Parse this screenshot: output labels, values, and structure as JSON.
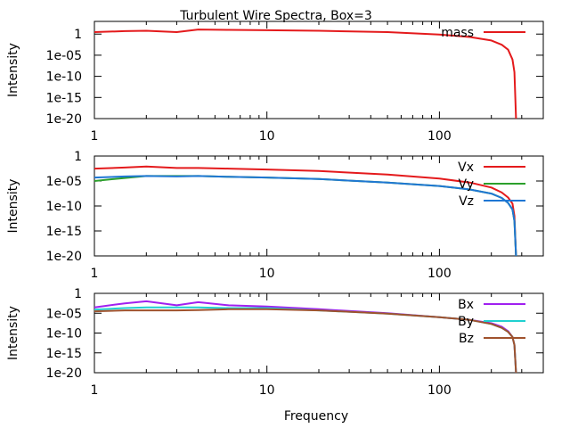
{
  "title": "Turbulent Wire Spectra, Box=3",
  "chart_data": [
    {
      "type": "line",
      "xscale": "log",
      "yscale": "log",
      "xlim": [
        1,
        400
      ],
      "ylim": [
        1e-20,
        1000
      ],
      "xticks": [
        "1",
        "10",
        "100"
      ],
      "yticks": [
        "1e-20",
        "1e-15",
        "1e-10",
        "1e-05",
        "1"
      ],
      "ylabel": "Intensity",
      "xlabel": "",
      "legend_position": "top-right",
      "series": [
        {
          "name": "mass",
          "color": "#e41a1c",
          "x": [
            1,
            1.5,
            2,
            3,
            4,
            6,
            10,
            20,
            50,
            100,
            150,
            200,
            230,
            250,
            265,
            272,
            278
          ],
          "y": [
            3,
            5,
            6,
            3,
            12,
            10,
            8,
            6,
            3,
            0.8,
            0.2,
            0.03,
            0.003,
            0.0002,
            1e-06,
            1e-09,
            1e-20
          ]
        }
      ]
    },
    {
      "type": "line",
      "xscale": "log",
      "yscale": "log",
      "xlim": [
        1,
        400
      ],
      "ylim": [
        1e-20,
        1
      ],
      "xticks": [
        "1",
        "10",
        "100"
      ],
      "yticks": [
        "1e-20",
        "1e-15",
        "1e-10",
        "1e-05",
        "1"
      ],
      "ylabel": "Intensity",
      "xlabel": "",
      "legend_position": "top-right",
      "series": [
        {
          "name": "Vx",
          "color": "#e41a1c",
          "x": [
            1,
            1.5,
            2,
            3,
            4,
            6,
            10,
            20,
            50,
            100,
            150,
            200,
            230,
            250,
            265,
            272,
            278
          ],
          "y": [
            0.003,
            0.005,
            0.008,
            0.004,
            0.004,
            0.003,
            0.002,
            0.001,
            0.0002,
            3e-05,
            5e-06,
            5e-07,
            5e-08,
            5e-09,
            3e-10,
            1e-12,
            1e-20
          ]
        },
        {
          "name": "Vy",
          "color": "#2ca02c",
          "x": [
            1,
            1.5,
            2,
            3,
            4,
            6,
            10,
            20,
            50,
            100,
            150,
            200,
            230,
            250,
            265,
            272,
            278
          ],
          "y": [
            1e-05,
            4e-05,
            0.0001,
            0.0001,
            0.0001,
            7e-05,
            5e-05,
            2.5e-05,
            5e-06,
            1e-06,
            2e-07,
            3e-08,
            4e-09,
            4e-10,
            2e-11,
            1e-13,
            1e-20
          ]
        },
        {
          "name": "Vz",
          "color": "#1f77d4",
          "x": [
            1,
            1.5,
            2,
            3,
            4,
            6,
            10,
            20,
            50,
            100,
            150,
            200,
            230,
            250,
            265,
            272,
            278
          ],
          "y": [
            5e-05,
            8e-05,
            0.0001,
            8e-05,
            0.0001,
            7e-05,
            5e-05,
            2.5e-05,
            5e-06,
            1e-06,
            2e-07,
            3e-08,
            4e-09,
            4e-10,
            2e-11,
            1e-13,
            1e-20
          ]
        }
      ]
    },
    {
      "type": "line",
      "xscale": "log",
      "yscale": "log",
      "xlim": [
        1,
        400
      ],
      "ylim": [
        1e-20,
        1
      ],
      "xticks": [
        "1",
        "10",
        "100"
      ],
      "yticks": [
        "1e-20",
        "1e-15",
        "1e-10",
        "1e-05",
        "1"
      ],
      "ylabel": "Intensity",
      "xlabel": "Frequency",
      "legend_position": "top-right",
      "series": [
        {
          "name": "Bx",
          "color": "#a020f0",
          "x": [
            1,
            1.5,
            2,
            3,
            4,
            6,
            10,
            20,
            50,
            100,
            150,
            200,
            230,
            250,
            265,
            272,
            278
          ],
          "y": [
            0.0003,
            0.003,
            0.01,
            0.001,
            0.006,
            0.001,
            0.0005,
            0.0001,
            1e-05,
            1e-06,
            2e-07,
            3e-08,
            4e-09,
            3e-10,
            1e-11,
            1e-13,
            1e-20
          ]
        },
        {
          "name": "By",
          "color": "#20d0d0",
          "x": [
            1,
            1.5,
            2,
            3,
            4,
            6,
            10,
            20,
            50,
            100,
            150,
            200,
            230,
            250,
            265,
            272,
            278
          ],
          "y": [
            8e-05,
            0.0002,
            0.0003,
            0.0003,
            0.0003,
            0.0002,
            0.0002,
            5e-05,
            8e-06,
            1e-06,
            2e-07,
            2e-08,
            2e-09,
            2e-10,
            1e-11,
            1e-13,
            1e-20
          ]
        },
        {
          "name": "Bz",
          "color": "#a0522d",
          "x": [
            1,
            1.5,
            2,
            3,
            4,
            6,
            10,
            20,
            50,
            100,
            150,
            200,
            230,
            250,
            265,
            272,
            278
          ],
          "y": [
            3e-05,
            5e-05,
            5e-05,
            5e-05,
            6e-05,
            0.0001,
            0.0001,
            5e-05,
            8e-06,
            1e-06,
            2e-07,
            2e-08,
            2e-09,
            2e-10,
            1e-11,
            1e-13,
            1e-20
          ]
        }
      ]
    }
  ]
}
